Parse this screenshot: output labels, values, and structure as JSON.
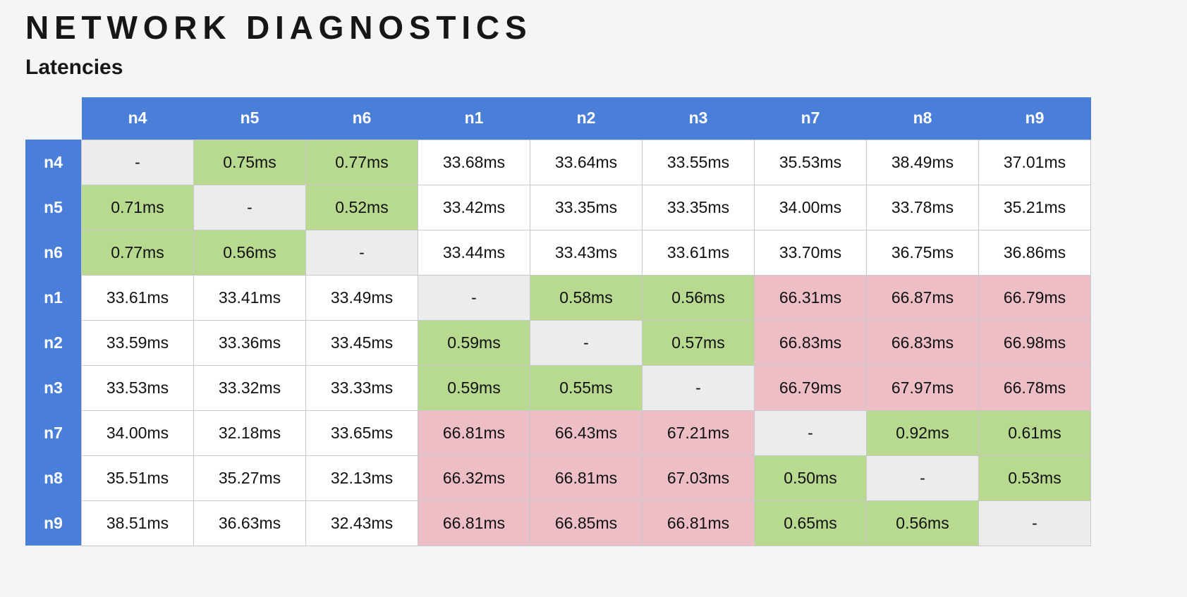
{
  "page": {
    "title": "NETWORK DIAGNOSTICS",
    "subtitle": "Latencies",
    "background": "#f5f5f5"
  },
  "palette": {
    "header_blue": "#497fd8",
    "header_text": "#ffffff",
    "cell_low_green": "#b8d990",
    "cell_high_pink": "#edbec5",
    "cell_diagonal_gray": "#ececec",
    "cell_mid_white": "#ffffff",
    "grid_line": "#c8c8c8",
    "cell_text": "#111111"
  },
  "chart_data": {
    "type": "table",
    "title": "Latencies",
    "unit": "ms",
    "columns": [
      "n4",
      "n5",
      "n6",
      "n1",
      "n2",
      "n3",
      "n7",
      "n8",
      "n9"
    ],
    "rows": [
      {
        "label": "n4",
        "values": [
          "-",
          "0.75ms",
          "0.77ms",
          "33.68ms",
          "33.64ms",
          "33.55ms",
          "35.53ms",
          "38.49ms",
          "37.01ms"
        ],
        "colors": [
          "gray",
          "green",
          "green",
          "white",
          "white",
          "white",
          "white",
          "white",
          "white"
        ]
      },
      {
        "label": "n5",
        "values": [
          "0.71ms",
          "-",
          "0.52ms",
          "33.42ms",
          "33.35ms",
          "33.35ms",
          "34.00ms",
          "33.78ms",
          "35.21ms"
        ],
        "colors": [
          "green",
          "gray",
          "green",
          "white",
          "white",
          "white",
          "white",
          "white",
          "white"
        ]
      },
      {
        "label": "n6",
        "values": [
          "0.77ms",
          "0.56ms",
          "-",
          "33.44ms",
          "33.43ms",
          "33.61ms",
          "33.70ms",
          "36.75ms",
          "36.86ms"
        ],
        "colors": [
          "green",
          "green",
          "gray",
          "white",
          "white",
          "white",
          "white",
          "white",
          "white"
        ]
      },
      {
        "label": "n1",
        "values": [
          "33.61ms",
          "33.41ms",
          "33.49ms",
          "-",
          "0.58ms",
          "0.56ms",
          "66.31ms",
          "66.87ms",
          "66.79ms"
        ],
        "colors": [
          "white",
          "white",
          "white",
          "gray",
          "green",
          "green",
          "pink",
          "pink",
          "pink"
        ]
      },
      {
        "label": "n2",
        "values": [
          "33.59ms",
          "33.36ms",
          "33.45ms",
          "0.59ms",
          "-",
          "0.57ms",
          "66.83ms",
          "66.83ms",
          "66.98ms"
        ],
        "colors": [
          "white",
          "white",
          "white",
          "green",
          "gray",
          "green",
          "pink",
          "pink",
          "pink"
        ]
      },
      {
        "label": "n3",
        "values": [
          "33.53ms",
          "33.32ms",
          "33.33ms",
          "0.59ms",
          "0.55ms",
          "-",
          "66.79ms",
          "67.97ms",
          "66.78ms"
        ],
        "colors": [
          "white",
          "white",
          "white",
          "green",
          "green",
          "gray",
          "pink",
          "pink",
          "pink"
        ]
      },
      {
        "label": "n7",
        "values": [
          "34.00ms",
          "32.18ms",
          "33.65ms",
          "66.81ms",
          "66.43ms",
          "67.21ms",
          "-",
          "0.92ms",
          "0.61ms"
        ],
        "colors": [
          "white",
          "white",
          "white",
          "pink",
          "pink",
          "pink",
          "gray",
          "green",
          "green"
        ]
      },
      {
        "label": "n8",
        "values": [
          "35.51ms",
          "35.27ms",
          "32.13ms",
          "66.32ms",
          "66.81ms",
          "67.03ms",
          "0.50ms",
          "-",
          "0.53ms"
        ],
        "colors": [
          "white",
          "white",
          "white",
          "pink",
          "pink",
          "pink",
          "green",
          "gray",
          "green"
        ]
      },
      {
        "label": "n9",
        "values": [
          "38.51ms",
          "36.63ms",
          "32.43ms",
          "66.81ms",
          "66.85ms",
          "66.81ms",
          "0.65ms",
          "0.56ms",
          "-"
        ],
        "colors": [
          "white",
          "white",
          "white",
          "pink",
          "pink",
          "pink",
          "green",
          "green",
          "gray"
        ]
      }
    ]
  }
}
